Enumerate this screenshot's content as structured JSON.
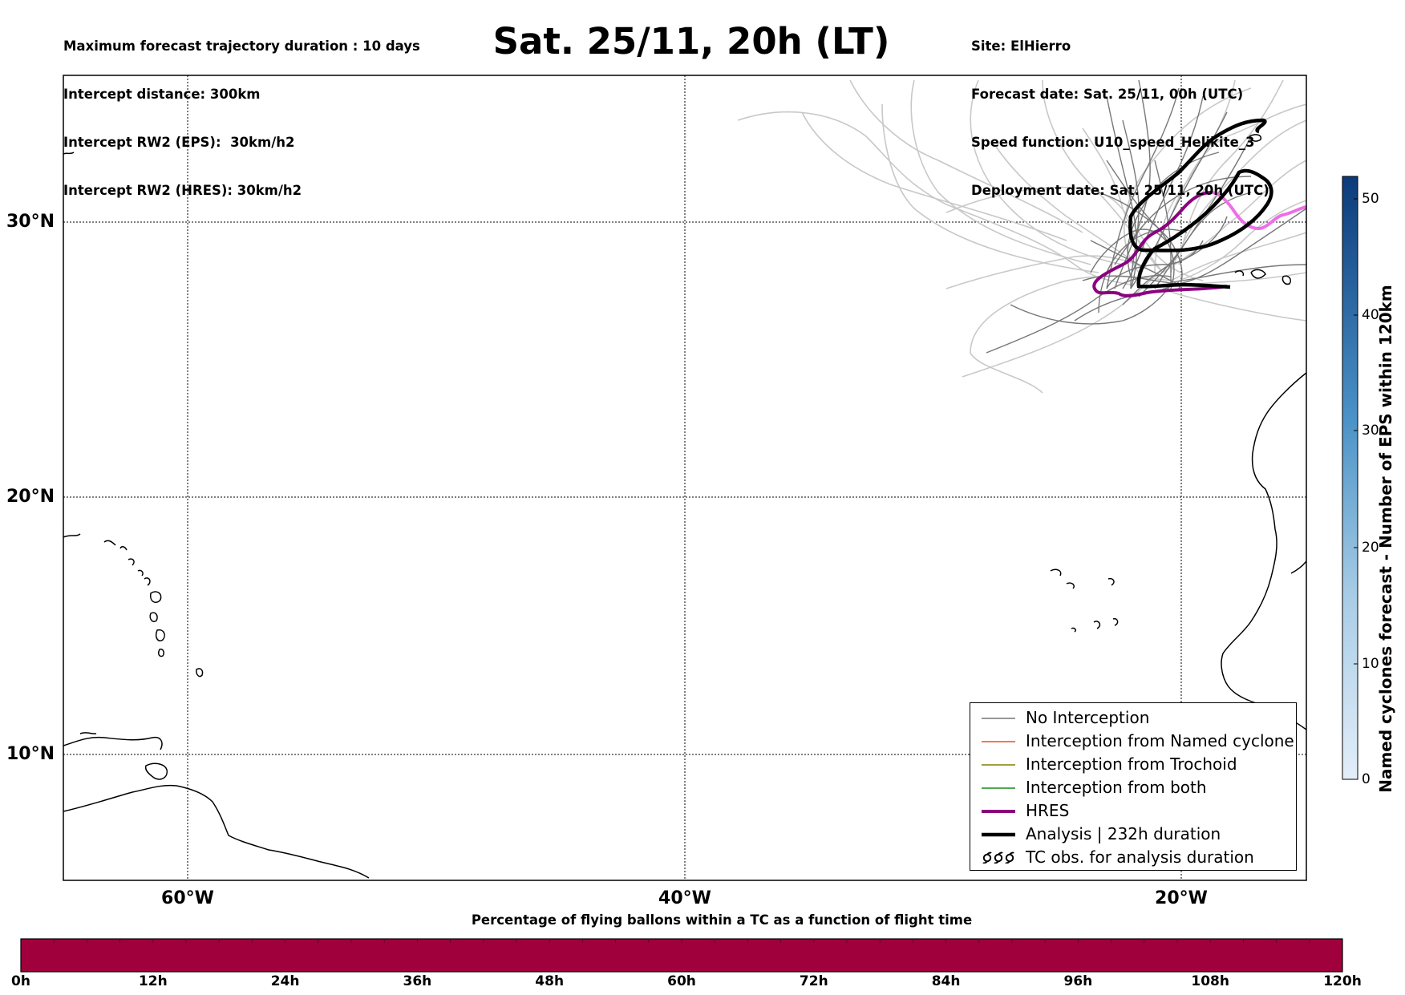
{
  "header": {
    "title": "Sat. 25/11, 20h (LT)",
    "left_lines": [
      "Maximum forecast trajectory duration : 10 days",
      "Intercept distance: 300km",
      "Intercept RW2 (EPS):  30km/h2",
      "Intercept RW2 (HRES): 30km/h2"
    ],
    "right_lines": [
      "Site: ElHierro",
      "Forecast date: Sat. 25/11, 00h (UTC)",
      "Speed function: U10_speed_Helikite_3",
      "Deployment date: Sat. 25/11, 20h (UTC)"
    ]
  },
  "map": {
    "lat_labels": [
      "30°N",
      "20°N",
      "10°N"
    ],
    "lon_labels": [
      "60°W",
      "40°W",
      "20°W"
    ],
    "colors": {
      "no_interception": "#777777",
      "ensemble_faint": "#c8c8c8",
      "named_cyclone": "#e8501e",
      "trochoid": "#808000",
      "both": "#1a8a1a",
      "hres": "#8b0080",
      "hres_later": "#ee6ee8",
      "analysis": "#000000",
      "coastline": "#000000"
    }
  },
  "legend": {
    "items": [
      {
        "label": "No Interception",
        "color": "#777777",
        "style": "thin"
      },
      {
        "label": "Interception from Named cyclone",
        "color": "#e8501e",
        "style": "thin"
      },
      {
        "label": "Interception from Trochoid",
        "color": "#808000",
        "style": "thin"
      },
      {
        "label": "Interception from both",
        "color": "#1a8a1a",
        "style": "thin"
      },
      {
        "label": "HRES",
        "color": "#8b0080",
        "style": "thick"
      },
      {
        "label": "Analysis | 232h duration",
        "color": "#000000",
        "style": "thick"
      },
      {
        "label": "TC obs. for analysis duration",
        "color": "#000000",
        "style": "tc-symbol"
      }
    ]
  },
  "colorbar": {
    "label": "Named cyclones forecast - Number of EPS within 120km",
    "ticks": [
      "50",
      "40",
      "30",
      "20",
      "10",
      "0"
    ],
    "range": [
      0,
      52
    ],
    "color_low": "#e3eef9",
    "color_high": "#0b3a7a"
  },
  "time_bar": {
    "title": "Percentage of flying ballons within a TC as a function of flight time",
    "ticks": [
      "0h",
      "12h",
      "24h",
      "36h",
      "48h",
      "60h",
      "72h",
      "84h",
      "96h",
      "108h",
      "120h"
    ],
    "fill_color": "#a0003c"
  }
}
